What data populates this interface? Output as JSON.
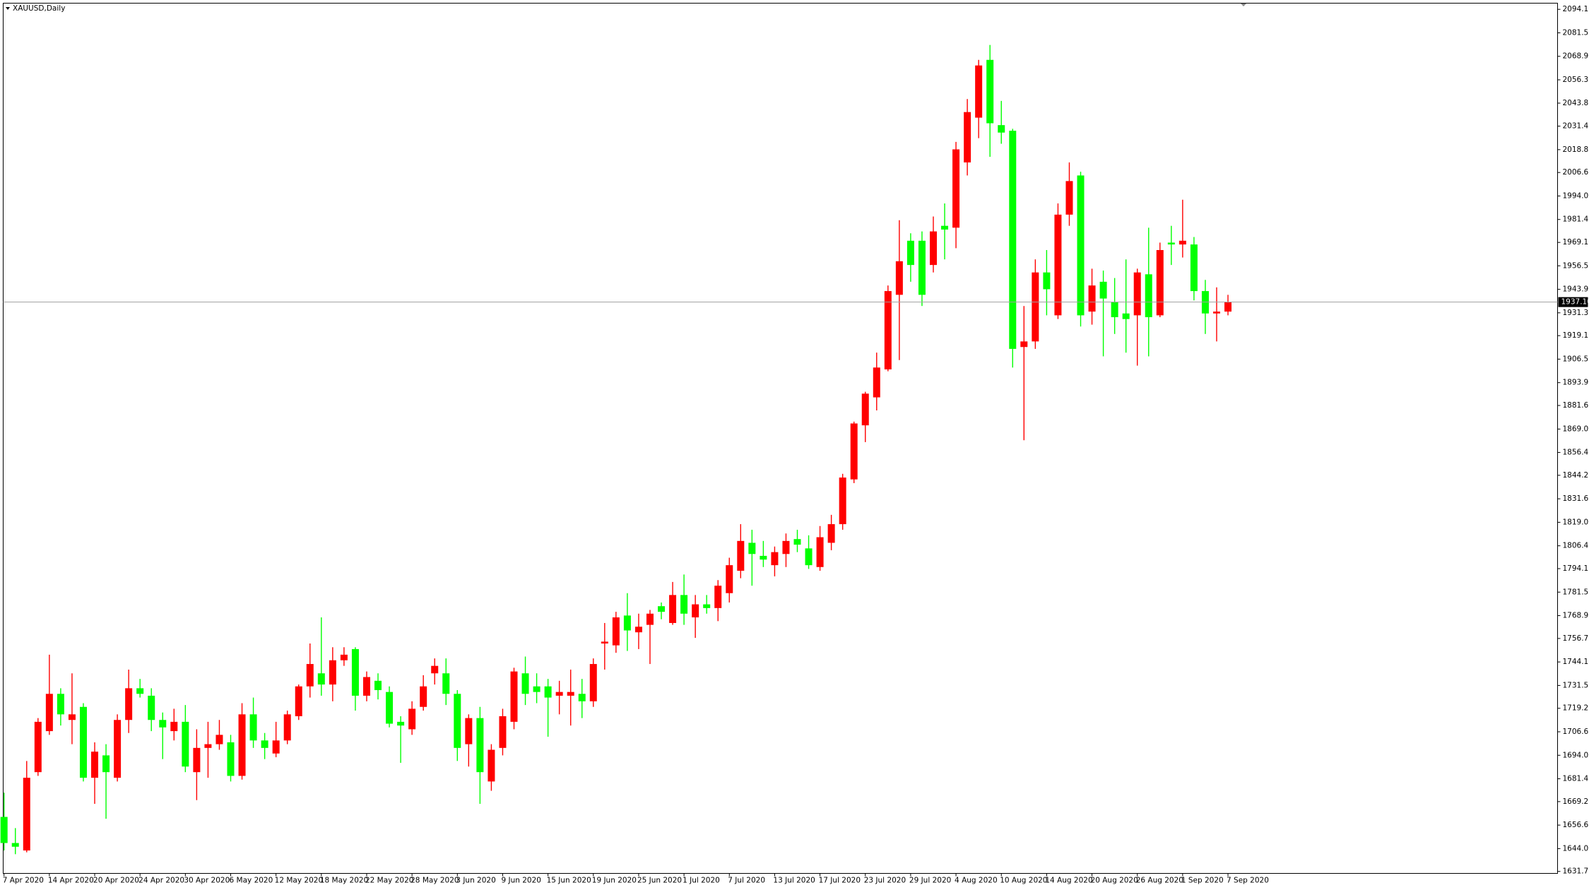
{
  "chart_data": {
    "type": "candlestick",
    "title": "XAUUSD,Daily",
    "categories": [
      "7 Apr 2020",
      null,
      null,
      null,
      "14 Apr 2020",
      null,
      null,
      null,
      "20 Apr 2020",
      null,
      null,
      null,
      "24 Apr 2020",
      null,
      null,
      null,
      "30 Apr 2020",
      null,
      null,
      null,
      "6 May 2020",
      null,
      null,
      null,
      "12 May 2020",
      null,
      null,
      null,
      "18 May 2020",
      null,
      null,
      null,
      "22 May 2020",
      null,
      null,
      null,
      "28 May 2020",
      null,
      null,
      null,
      "3 Jun 2020",
      null,
      null,
      null,
      "9 Jun 2020",
      null,
      null,
      null,
      "15 Jun 2020",
      null,
      null,
      null,
      "19 Jun 2020",
      null,
      null,
      null,
      "25 Jun 2020",
      null,
      null,
      null,
      "1 Jul 2020",
      null,
      null,
      null,
      "7 Jul 2020",
      null,
      null,
      null,
      "13 Jul 2020",
      null,
      null,
      null,
      "17 Jul 2020",
      null,
      null,
      null,
      "23 Jul 2020",
      null,
      null,
      null,
      "29 Jul 2020",
      null,
      null,
      null,
      "4 Aug 2020",
      null,
      null,
      null,
      "10 Aug 2020",
      null,
      null,
      null,
      "14 Aug 2020",
      null,
      null,
      null,
      "20 Aug 2020",
      null,
      null,
      null,
      "26 Aug 2020",
      null,
      null,
      null,
      "1 Sep 2020",
      null,
      null,
      null,
      "7 Sep 2020"
    ],
    "open": [
      1661,
      1647,
      1643,
      1685,
      1707,
      1727,
      1713,
      1720,
      1682,
      1694,
      1682,
      1713,
      1730,
      1726,
      1713,
      1707,
      1712,
      1685,
      1698,
      1700,
      1701,
      1683,
      1716,
      1702,
      1695,
      1702,
      1715,
      1731,
      1738,
      1732,
      1745,
      1751,
      1726,
      1734,
      1728,
      1712,
      1708,
      1720,
      1738,
      1738,
      1727,
      1700,
      1714,
      1680,
      1698,
      1712,
      1738,
      1731,
      1731,
      1726,
      1726,
      1727,
      1723,
      1754,
      1753,
      1769,
      1760,
      1764,
      1774,
      1765,
      1780,
      1768,
      1775,
      1773,
      1781,
      1793,
      1808,
      1801,
      1796,
      1802,
      1810,
      1805,
      1795,
      1808,
      1818,
      1842,
      1871,
      1886,
      1901,
      1941,
      1970,
      1970,
      1957,
      1978,
      1977,
      2012,
      2036,
      2067,
      2032,
      2029,
      1913,
      1916,
      1953,
      1930,
      1984,
      2005,
      1932,
      1948,
      1937,
      1931,
      1930,
      1952,
      1930,
      1969,
      1968,
      1968,
      1943,
      1931,
      1932
    ],
    "high": [
      1674,
      1655,
      1691,
      1714,
      1748,
      1730,
      1738,
      1722,
      1701,
      1700,
      1716,
      1740,
      1735,
      1730,
      1717,
      1719,
      1721,
      1708,
      1712,
      1713,
      1705,
      1722,
      1725,
      1706,
      1712,
      1718,
      1732,
      1754,
      1768,
      1752,
      1752,
      1752,
      1739,
      1738,
      1731,
      1715,
      1723,
      1737,
      1746,
      1746,
      1729,
      1716,
      1720,
      1700,
      1719,
      1741,
      1747,
      1738,
      1735,
      1734,
      1740,
      1735,
      1746,
      1765,
      1771,
      1781,
      1770,
      1772,
      1776,
      1787,
      1791,
      1780,
      1780,
      1788,
      1800,
      1818,
      1815,
      1809,
      1806,
      1813,
      1815,
      1812,
      1817,
      1823,
      1845,
      1873,
      1889,
      1910,
      1946,
      1981,
      1974,
      1975,
      1983,
      1990,
      2023,
      2046,
      2067,
      2075,
      2045,
      2030,
      1935,
      1960,
      1965,
      1990,
      2012,
      2007,
      1955,
      1954,
      1950,
      1960,
      1955,
      1977,
      1969,
      1978,
      1992,
      1972,
      1949,
      1945,
      1941
    ],
    "low": [
      1643,
      1641,
      1642,
      1683,
      1705,
      1710,
      1700,
      1680,
      1668,
      1660,
      1680,
      1706,
      1725,
      1707,
      1692,
      1702,
      1685,
      1670,
      1682,
      1697,
      1680,
      1681,
      1698,
      1692,
      1693,
      1700,
      1713,
      1725,
      1726,
      1723,
      1742,
      1718,
      1723,
      1724,
      1709,
      1690,
      1705,
      1718,
      1732,
      1721,
      1691,
      1688,
      1668,
      1675,
      1694,
      1708,
      1721,
      1722,
      1704,
      1716,
      1710,
      1714,
      1720,
      1740,
      1749,
      1750,
      1751,
      1743,
      1767,
      1764,
      1764,
      1757,
      1770,
      1766,
      1776,
      1789,
      1785,
      1795,
      1790,
      1795,
      1803,
      1794,
      1793,
      1804,
      1815,
      1840,
      1862,
      1879,
      1900,
      1906,
      1948,
      1935,
      1953,
      1960,
      1966,
      2005,
      2025,
      2015,
      2022,
      1902,
      1863,
      1912,
      1930,
      1928,
      1978,
      1924,
      1925,
      1908,
      1920,
      1910,
      1903,
      1908,
      1929,
      1957,
      1961,
      1938,
      1920,
      1916,
      1930
    ],
    "close": [
      1647,
      1645,
      1682,
      1712,
      1727,
      1716,
      1716,
      1682,
      1696,
      1685,
      1713,
      1730,
      1727,
      1713,
      1709,
      1712,
      1688,
      1698,
      1700,
      1705,
      1683,
      1716,
      1702,
      1698,
      1702,
      1716,
      1731,
      1743,
      1732,
      1745,
      1748,
      1726,
      1736,
      1729,
      1711,
      1710,
      1719,
      1731,
      1742,
      1727,
      1698,
      1714,
      1685,
      1697,
      1715,
      1739,
      1727,
      1728,
      1725,
      1728,
      1728,
      1723,
      1743,
      1755,
      1768,
      1761,
      1763,
      1770,
      1771,
      1780,
      1770,
      1775,
      1773,
      1785,
      1796,
      1809,
      1802,
      1799,
      1803,
      1809,
      1807,
      1796,
      1811,
      1818,
      1843,
      1872,
      1888,
      1902,
      1943,
      1959,
      1957,
      1941,
      1975,
      1976,
      2019,
      2039,
      2064,
      2033,
      2028,
      1912,
      1916,
      1953,
      1944,
      1984,
      2002,
      1930,
      1946,
      1939,
      1929,
      1928,
      1953,
      1929,
      1965,
      1968,
      1970,
      1943,
      1931,
      1932,
      1937
    ],
    "up_color": "#ff0000",
    "down_color": "#00ff00",
    "ylim": [
      1630.7,
      2097.4
    ],
    "yticks": [
      {
        "value": 2094.1,
        "label": "2094.10"
      },
      {
        "value": 2081.5,
        "label": "2081.50"
      },
      {
        "value": 2068.9,
        "label": "2068.90"
      },
      {
        "value": 2056.3,
        "label": "2056.30"
      },
      {
        "value": 2043.8,
        "label": "2043.80"
      },
      {
        "value": 2031.45,
        "label": "2031.45"
      },
      {
        "value": 2018.85,
        "label": "2018.85"
      },
      {
        "value": 2006.6,
        "label": "2006.60"
      },
      {
        "value": 1994,
        "label": "1994.00"
      },
      {
        "value": 1981.4,
        "label": "1981.40"
      },
      {
        "value": 1969.1,
        "label": "1969.10"
      },
      {
        "value": 1956.55,
        "label": "1956.55"
      },
      {
        "value": 1943.95,
        "label": "1943.95"
      },
      {
        "value": 1931.35,
        "label": "1931.35"
      },
      {
        "value": 1919.1,
        "label": "1919.10"
      },
      {
        "value": 1906.5,
        "label": "1906.50"
      },
      {
        "value": 1893.9,
        "label": "1893.90"
      },
      {
        "value": 1881.65,
        "label": "1881.65"
      },
      {
        "value": 1869,
        "label": "1869.00"
      },
      {
        "value": 1856.45,
        "label": "1856.45"
      },
      {
        "value": 1844.2,
        "label": "1844.20"
      },
      {
        "value": 1831.6,
        "label": "1831.60"
      },
      {
        "value": 1819,
        "label": "1819.00"
      },
      {
        "value": 1806.4,
        "label": "1806.40"
      },
      {
        "value": 1794.15,
        "label": "1794.15"
      },
      {
        "value": 1781.55,
        "label": "1781.55"
      },
      {
        "value": 1768.95,
        "label": "1768.95"
      },
      {
        "value": 1756.7,
        "label": "1756.70"
      },
      {
        "value": 1744.1,
        "label": "1744.10"
      },
      {
        "value": 1731.5,
        "label": "1731.50"
      },
      {
        "value": 1719.25,
        "label": "1719.25"
      },
      {
        "value": 1706.65,
        "label": "1706.65"
      },
      {
        "value": 1694.05,
        "label": "1694.05"
      },
      {
        "value": 1681.45,
        "label": "1681.45"
      },
      {
        "value": 1669.2,
        "label": "1669.20"
      },
      {
        "value": 1656.6,
        "label": "1656.60"
      },
      {
        "value": 1644,
        "label": "1644.00"
      },
      {
        "value": 1631.75,
        "label": "1631.75"
      }
    ],
    "last_price": {
      "value": 1937.1,
      "label": "1937.10"
    }
  }
}
